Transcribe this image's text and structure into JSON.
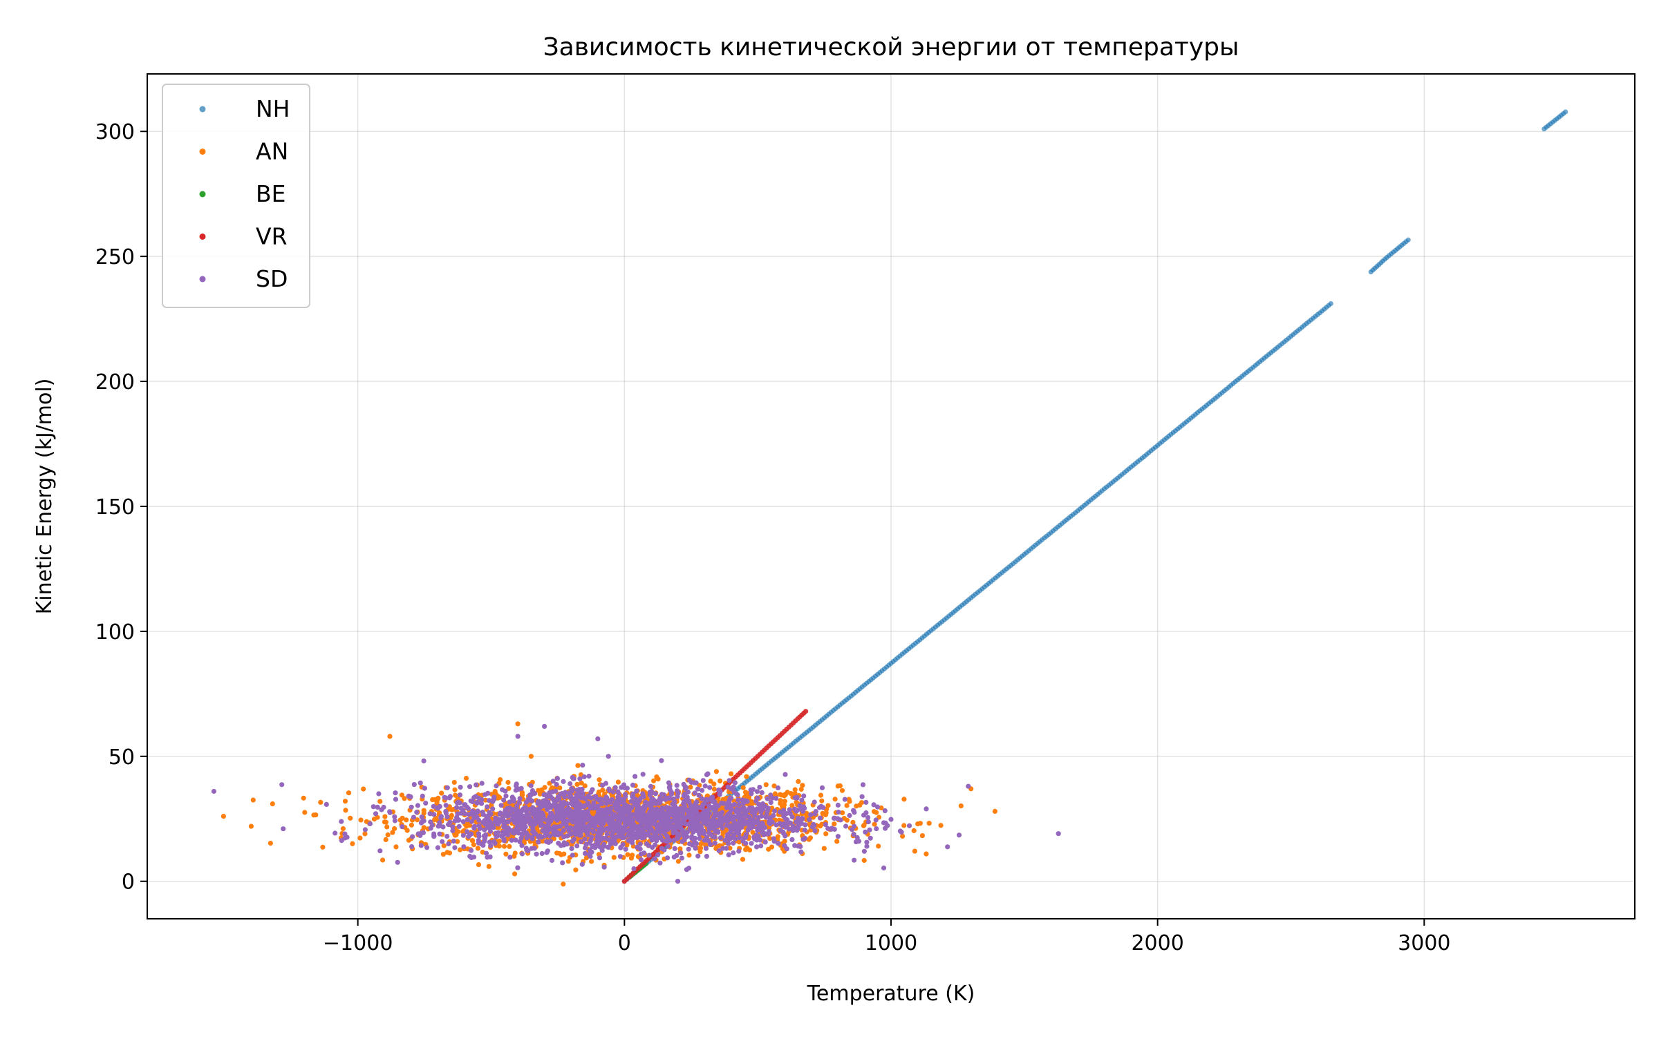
{
  "chart_data": {
    "type": "scatter",
    "title": "Зависимость кинетической энергии от температуры",
    "xlabel": "Temperature (K)",
    "ylabel": "Kinetic Energy (kJ/mol)",
    "xlim": [
      -1790,
      3790
    ],
    "ylim": [
      -15,
      323
    ],
    "x_ticks": [
      -1000,
      0,
      1000,
      2000,
      3000
    ],
    "x_tick_labels": [
      "−1000",
      "0",
      "1000",
      "2000",
      "3000"
    ],
    "y_ticks": [
      0,
      50,
      100,
      150,
      200,
      250,
      300
    ],
    "y_tick_labels": [
      "0",
      "50",
      "100",
      "150",
      "200",
      "250",
      "300"
    ],
    "grid": true,
    "legend_position": "top-left",
    "series": [
      {
        "name": "NH",
        "color": "#1f77b4",
        "kind": "linear",
        "slope": 0.0872,
        "points": [
          [
            0,
            0
          ],
          [
            50,
            4.4
          ],
          [
            100,
            8.7
          ],
          [
            150,
            13.1
          ],
          [
            200,
            17.4
          ],
          [
            250,
            21.8
          ],
          [
            300,
            26.2
          ],
          [
            350,
            30.5
          ],
          [
            400,
            34.9
          ],
          [
            450,
            39.2
          ],
          [
            500,
            43.6
          ],
          [
            550,
            48
          ],
          [
            600,
            52.3
          ],
          [
            650,
            56.7
          ],
          [
            700,
            61
          ],
          [
            750,
            65.4
          ],
          [
            800,
            69.8
          ],
          [
            850,
            74.1
          ],
          [
            900,
            78.5
          ],
          [
            950,
            82.8
          ],
          [
            1000,
            87.2
          ],
          [
            1050,
            91.6
          ],
          [
            1100,
            95.9
          ],
          [
            1150,
            100.3
          ],
          [
            1200,
            104.6
          ],
          [
            1250,
            109
          ],
          [
            1300,
            113.4
          ],
          [
            1350,
            117.7
          ],
          [
            1400,
            122.1
          ],
          [
            1450,
            126.4
          ],
          [
            1500,
            130.8
          ],
          [
            1550,
            135.2
          ],
          [
            1600,
            139.5
          ],
          [
            1650,
            143.9
          ],
          [
            1700,
            148.2
          ],
          [
            1750,
            152.6
          ],
          [
            1800,
            157
          ],
          [
            1850,
            161.3
          ],
          [
            1900,
            165.7
          ],
          [
            1950,
            170
          ],
          [
            2000,
            174.4
          ],
          [
            2050,
            178.8
          ],
          [
            2100,
            183.1
          ],
          [
            2150,
            187.5
          ],
          [
            2200,
            191.8
          ],
          [
            2250,
            196.2
          ],
          [
            2300,
            200.6
          ],
          [
            2350,
            204.9
          ],
          [
            2400,
            209.3
          ],
          [
            2450,
            213.6
          ],
          [
            2500,
            218
          ],
          [
            2550,
            222.4
          ],
          [
            2600,
            226.7
          ],
          [
            2650,
            231.1
          ],
          [
            2800,
            243.8
          ],
          [
            2860,
            249.6
          ],
          [
            2940,
            256.6
          ],
          [
            3450,
            301
          ],
          [
            3530,
            307.8
          ]
        ]
      },
      {
        "name": "AN",
        "color": "#ff7f0e",
        "kind": "cloud",
        "center": [
          0,
          25
        ],
        "spread": [
          400,
          6.5
        ],
        "points": [
          [
            -880,
            58
          ],
          [
            -400,
            63
          ],
          [
            -1400,
            22
          ],
          [
            1390,
            28
          ],
          [
            -1320,
            31
          ],
          [
            1300,
            37
          ],
          [
            -350,
            50
          ],
          [
            400,
            43
          ],
          [
            -600,
            13
          ],
          [
            600,
            12
          ]
        ]
      },
      {
        "name": "BE",
        "color": "#2ca02c",
        "kind": "linear",
        "points": [
          [
            20,
            1.8
          ],
          [
            40,
            3.5
          ],
          [
            60,
            5.2
          ],
          [
            80,
            7
          ]
        ]
      },
      {
        "name": "VR",
        "color": "#d62728",
        "kind": "linear",
        "points": [
          [
            0,
            0
          ],
          [
            50,
            5
          ],
          [
            100,
            10
          ],
          [
            150,
            15
          ],
          [
            200,
            20
          ],
          [
            250,
            25
          ],
          [
            300,
            30
          ],
          [
            350,
            35
          ],
          [
            400,
            40
          ],
          [
            450,
            45
          ],
          [
            500,
            50
          ],
          [
            550,
            55
          ],
          [
            600,
            60
          ],
          [
            650,
            65
          ],
          [
            680,
            68
          ]
        ]
      },
      {
        "name": "SD",
        "color": "#9467bd",
        "kind": "cloud",
        "center": [
          0,
          25
        ],
        "spread": [
          380,
          6.5
        ],
        "points": [
          [
            -1540,
            36
          ],
          [
            -300,
            62
          ],
          [
            -400,
            58
          ],
          [
            -100,
            57
          ],
          [
            200,
            0
          ],
          [
            1290,
            38
          ],
          [
            -1280,
            21
          ],
          [
            -580,
            10
          ],
          [
            900,
            12
          ],
          [
            -60,
            50
          ]
        ]
      }
    ]
  }
}
